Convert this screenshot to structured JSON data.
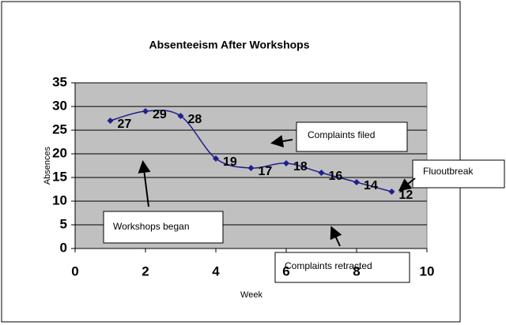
{
  "chart_data": {
    "type": "line",
    "title": "Absenteeism After Workshops",
    "x_label": "Week",
    "y_label": "Absences",
    "x": [
      1,
      2,
      3,
      4,
      5,
      6,
      7,
      8,
      9
    ],
    "values": [
      27,
      29,
      28,
      19,
      17,
      18,
      16,
      14,
      12
    ],
    "color": "#1f1f8f",
    "xlim": [
      0,
      10
    ],
    "xticks": [
      0,
      2,
      4,
      6,
      8,
      10
    ],
    "ylim": [
      0,
      35
    ],
    "yticks": [
      0,
      5,
      10,
      15,
      20,
      25,
      30,
      35
    ],
    "grid": true,
    "smooth": true,
    "annotations": [
      "Workshops began",
      "Complaints filed",
      "Complaints retracted",
      "Fluoutbreak"
    ]
  }
}
